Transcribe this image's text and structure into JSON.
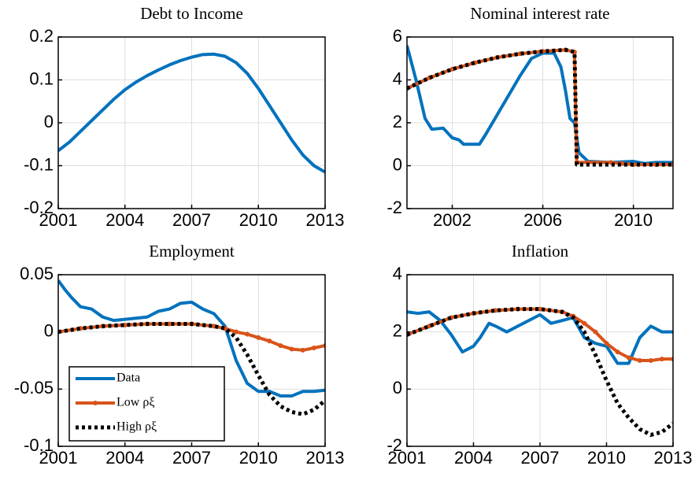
{
  "chart_data": [
    {
      "type": "line",
      "title": "Debt to Income",
      "xlim": [
        2001,
        2013
      ],
      "xticks": [
        2001,
        2004,
        2007,
        2010,
        2013
      ],
      "ylim": [
        -0.2,
        0.2
      ],
      "yticks": [
        -0.2,
        -0.1,
        0,
        0.1,
        0.2
      ],
      "grid": true,
      "series": [
        {
          "color": "#0072bd",
          "x": [
            2001,
            2001.5,
            2002,
            2002.5,
            2003,
            2003.5,
            2004,
            2004.5,
            2005,
            2005.5,
            2006,
            2006.5,
            2007,
            2007.5,
            2008,
            2008.5,
            2009,
            2009.5,
            2010,
            2010.5,
            2011,
            2011.5,
            2012,
            2012.5,
            2013
          ],
          "values": [
            -0.065,
            -0.045,
            -0.02,
            0.005,
            0.03,
            0.055,
            0.077,
            0.095,
            0.11,
            0.123,
            0.135,
            0.145,
            0.153,
            0.159,
            0.16,
            0.155,
            0.14,
            0.115,
            0.08,
            0.04,
            0.0,
            -0.04,
            -0.075,
            -0.1,
            -0.115
          ]
        }
      ]
    },
    {
      "type": "line",
      "title": "Nominal interest rate",
      "xlim": [
        2000,
        2011.75
      ],
      "xticks": [
        2002,
        2006,
        2010
      ],
      "ylim": [
        -2,
        6
      ],
      "yticks": [
        -2,
        0,
        2,
        4,
        6
      ],
      "grid": true,
      "series": [
        {
          "color": "#0072bd",
          "x": [
            2000,
            2000.4,
            2000.8,
            2001.1,
            2001.6,
            2002,
            2002.3,
            2002.5,
            2003.2,
            2003.5,
            2004,
            2004.5,
            2005,
            2005.5,
            2006,
            2006.5,
            2006.8,
            2007,
            2007.2,
            2007.4,
            2007.6,
            2008,
            2009,
            2010,
            2010.5,
            2011,
            2011.75
          ],
          "values": [
            5.6,
            4.0,
            2.2,
            1.7,
            1.75,
            1.3,
            1.2,
            1.0,
            1.0,
            1.5,
            2.4,
            3.3,
            4.2,
            5.0,
            5.25,
            5.25,
            4.6,
            3.5,
            2.2,
            2.0,
            0.6,
            0.2,
            0.15,
            0.2,
            0.1,
            0.15,
            0.15
          ]
        },
        {
          "color": "#d95319",
          "marker": "o",
          "x": [
            2000,
            2001,
            2002,
            2003,
            2004,
            2005,
            2006,
            2007,
            2007.4,
            2007.5,
            2008,
            2009,
            2009.5,
            2010,
            2011,
            2011.75
          ],
          "values": [
            3.6,
            4.1,
            4.5,
            4.8,
            5.05,
            5.22,
            5.33,
            5.4,
            5.3,
            0.15,
            0.15,
            0.15,
            0.1,
            0.05,
            0.05,
            0.05
          ]
        },
        {
          "color": "#000000",
          "dotted": true,
          "x": [
            2000,
            2001,
            2002,
            2003,
            2004,
            2005,
            2006,
            2007,
            2007.4,
            2007.5,
            2008,
            2009,
            2010,
            2011,
            2011.75
          ],
          "values": [
            3.6,
            4.1,
            4.5,
            4.8,
            5.05,
            5.22,
            5.33,
            5.4,
            5.3,
            0.05,
            0.05,
            0.05,
            0.05,
            0.05,
            0.05
          ]
        }
      ]
    },
    {
      "type": "line",
      "title": "Employment",
      "xlim": [
        2001,
        2013
      ],
      "xticks": [
        2001,
        2004,
        2007,
        2010,
        2013
      ],
      "ylim": [
        -0.1,
        0.05
      ],
      "yticks": [
        -0.1,
        -0.05,
        0,
        0.05
      ],
      "grid": true,
      "legend": "lower left",
      "series": [
        {
          "name": "Data",
          "color": "#0072bd",
          "x": [
            2001,
            2001.3,
            2001.6,
            2002,
            2002.5,
            2003,
            2003.5,
            2004,
            2004.5,
            2005,
            2005.5,
            2006,
            2006.5,
            2007,
            2007.5,
            2008,
            2008.5,
            2009,
            2009.5,
            2010,
            2010.5,
            2011,
            2011.5,
            2012,
            2012.5,
            2013
          ],
          "values": [
            0.045,
            0.037,
            0.03,
            0.022,
            0.02,
            0.013,
            0.01,
            0.011,
            0.012,
            0.013,
            0.018,
            0.02,
            0.025,
            0.026,
            0.02,
            0.016,
            0.005,
            -0.025,
            -0.045,
            -0.052,
            -0.052,
            -0.056,
            -0.056,
            -0.052,
            -0.052,
            -0.051
          ]
        },
        {
          "name": "Low ρξ",
          "color": "#d95319",
          "marker": "o",
          "x": [
            2001,
            2002,
            2003,
            2004,
            2005,
            2006,
            2007,
            2008,
            2008.5,
            2009,
            2009.5,
            2010,
            2010.5,
            2011,
            2011.5,
            2012,
            2012.5,
            2013
          ],
          "values": [
            0,
            0.003,
            0.005,
            0.006,
            0.007,
            0.007,
            0.007,
            0.005,
            0.003,
            0,
            -0.002,
            -0.005,
            -0.008,
            -0.012,
            -0.015,
            -0.016,
            -0.014,
            -0.012
          ]
        },
        {
          "name": "High ρξ",
          "color": "#000000",
          "dotted": true,
          "x": [
            2001,
            2002,
            2003,
            2004,
            2005,
            2006,
            2007,
            2008,
            2008.5,
            2009,
            2009.5,
            2010,
            2010.5,
            2011,
            2011.5,
            2012,
            2012.5,
            2013
          ],
          "values": [
            0,
            0.003,
            0.005,
            0.006,
            0.007,
            0.007,
            0.007,
            0.005,
            0.003,
            -0.005,
            -0.02,
            -0.038,
            -0.055,
            -0.065,
            -0.07,
            -0.072,
            -0.068,
            -0.06
          ]
        }
      ]
    },
    {
      "type": "line",
      "title": "Inflation",
      "xlim": [
        2001,
        2013
      ],
      "xticks": [
        2001,
        2004,
        2007,
        2010,
        2013
      ],
      "ylim": [
        -2,
        4
      ],
      "yticks": [
        -2,
        0,
        2,
        4
      ],
      "grid": true,
      "series": [
        {
          "color": "#0072bd",
          "x": [
            2001,
            2001.5,
            2002,
            2002.5,
            2003,
            2003.5,
            2004,
            2004.3,
            2004.7,
            2005,
            2005.5,
            2006,
            2006.5,
            2007,
            2007.5,
            2008,
            2008.5,
            2009,
            2009.5,
            2010,
            2010.5,
            2011,
            2011.5,
            2012,
            2012.5,
            2013
          ],
          "values": [
            2.7,
            2.65,
            2.7,
            2.4,
            1.9,
            1.3,
            1.5,
            1.8,
            2.3,
            2.2,
            2.0,
            2.2,
            2.4,
            2.6,
            2.3,
            2.4,
            2.5,
            1.8,
            1.6,
            1.5,
            0.9,
            0.9,
            1.8,
            2.2,
            2.0,
            2.0
          ]
        },
        {
          "color": "#d95319",
          "marker": "o",
          "x": [
            2001,
            2002,
            2003,
            2004,
            2005,
            2006,
            2007,
            2008,
            2008.5,
            2009,
            2009.5,
            2010,
            2010.5,
            2011,
            2011.5,
            2012,
            2012.5,
            2013
          ],
          "values": [
            1.9,
            2.2,
            2.5,
            2.65,
            2.75,
            2.8,
            2.8,
            2.7,
            2.55,
            2.3,
            2.0,
            1.6,
            1.3,
            1.1,
            1.0,
            1.0,
            1.05,
            1.05
          ]
        },
        {
          "color": "#000000",
          "dotted": true,
          "x": [
            2001,
            2002,
            2003,
            2004,
            2005,
            2006,
            2007,
            2008,
            2008.5,
            2009,
            2009.5,
            2010,
            2010.5,
            2011,
            2011.5,
            2012,
            2012.5,
            2013
          ],
          "values": [
            1.9,
            2.2,
            2.5,
            2.65,
            2.75,
            2.8,
            2.8,
            2.7,
            2.5,
            2.0,
            1.2,
            0.3,
            -0.5,
            -1.0,
            -1.4,
            -1.6,
            -1.5,
            -1.2
          ]
        }
      ]
    }
  ]
}
